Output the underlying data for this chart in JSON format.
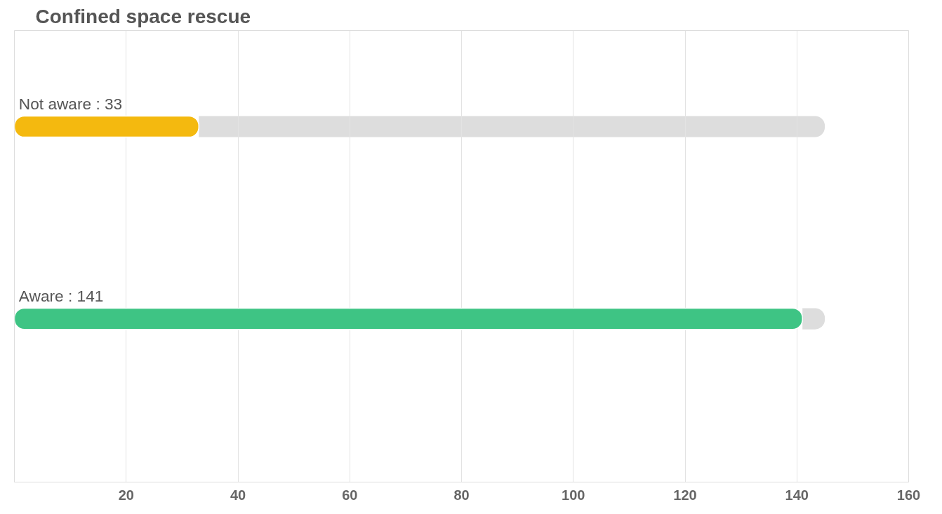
{
  "chart_data": {
    "type": "bar",
    "orientation": "horizontal",
    "title": "Confined space rescue",
    "categories": [
      null,
      null
    ],
    "stacked": true,
    "series": [
      {
        "colors": [
          "#f4b90f",
          "#3ec484"
        ],
        "values": [
          33,
          141
        ],
        "value_labels": [
          "Not aware : 33",
          "Aware : 141"
        ]
      },
      {
        "color": "#dddddd",
        "values": [
          112,
          4
        ]
      }
    ],
    "xlim": [
      0,
      160
    ],
    "xticks": [
      20,
      40,
      60,
      80,
      100,
      120,
      140,
      160
    ],
    "grid": "x"
  }
}
